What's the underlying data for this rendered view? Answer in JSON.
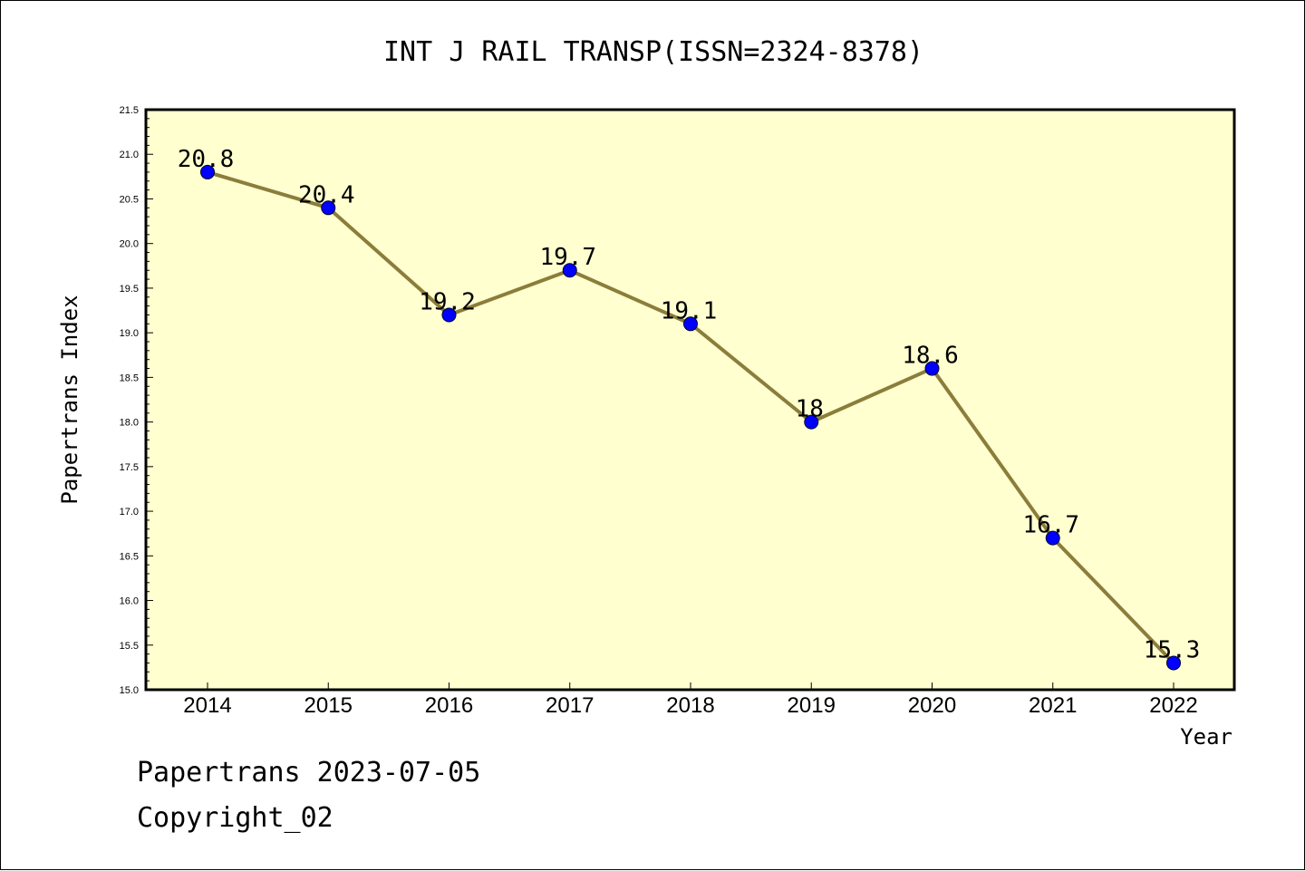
{
  "chart_data": {
    "type": "line",
    "title": "INT J RAIL TRANSP(ISSN=2324-8378)",
    "xlabel": "Year",
    "ylabel": "Papertrans Index",
    "categories": [
      "2014",
      "2015",
      "2016",
      "2017",
      "2018",
      "2019",
      "2020",
      "2021",
      "2022"
    ],
    "series": [
      {
        "values": [
          20.8,
          20.4,
          19.2,
          19.7,
          19.1,
          18.0,
          18.6,
          16.7,
          15.3
        ],
        "data_labels": [
          "20.8",
          "20.4",
          "19.2",
          "19.7",
          "19.1",
          "18",
          "18.6",
          "16.7",
          "15.3"
        ]
      }
    ],
    "ylim": [
      15.0,
      21.5
    ],
    "yticks": [
      "15.0",
      "15.5",
      "16.0",
      "16.5",
      "17.0",
      "17.5",
      "18.0",
      "18.5",
      "19.0",
      "19.5",
      "20.0",
      "20.5",
      "21.0",
      "21.5"
    ],
    "grid": false,
    "legend": "none",
    "colors": {
      "plot_background": "#ffffd0",
      "line": "#8b7d3a",
      "marker": "#0000ff",
      "axes": "#000000"
    }
  },
  "footer": {
    "line1": "Papertrans 2023-07-05",
    "line2": "Copyright_02"
  }
}
